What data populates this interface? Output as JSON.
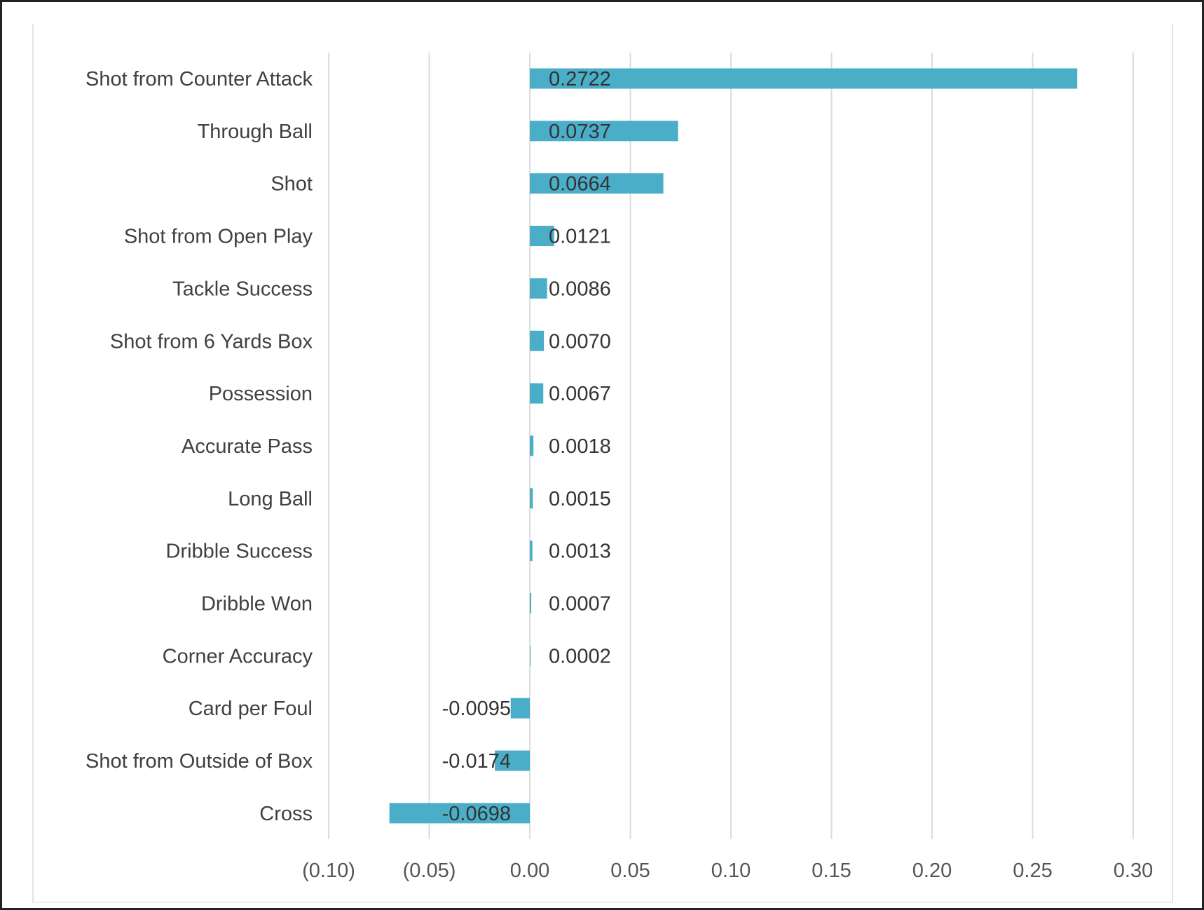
{
  "chart_data": {
    "type": "bar",
    "orientation": "horizontal",
    "title": "",
    "xlabel": "",
    "ylabel": "",
    "xlim": [
      -0.1,
      0.3
    ],
    "grid": true,
    "categories": [
      "Shot from Counter Attack",
      "Through Ball",
      "Shot",
      "Shot from Open Play",
      "Tackle Success",
      "Shot from 6 Yards Box",
      "Possession",
      "Accurate Pass",
      "Long Ball",
      "Dribble Success",
      "Dribble Won",
      "Corner Accuracy",
      "Card per Foul",
      "Shot from Outside of Box",
      "Cross"
    ],
    "values": [
      0.2722,
      0.0737,
      0.0664,
      0.0121,
      0.0086,
      0.007,
      0.0067,
      0.0018,
      0.0015,
      0.0013,
      0.0007,
      0.0002,
      -0.0095,
      -0.0174,
      -0.0698
    ],
    "data_labels": [
      "0.2722",
      "0.0737",
      "0.0664",
      "0.0121",
      "0.0086",
      "0.0070",
      "0.0067",
      "0.0018",
      "0.0015",
      "0.0013",
      "0.0007",
      "0.0002",
      "-0.0095",
      "-0.0174",
      "-0.0698"
    ],
    "ticks": [
      -0.1,
      -0.05,
      0.0,
      0.05,
      0.1,
      0.15,
      0.2,
      0.25,
      0.3
    ],
    "tick_labels": [
      "(0.10)",
      "(0.05)",
      "0.00",
      "0.05",
      "0.10",
      "0.15",
      "0.20",
      "0.25",
      "0.30"
    ],
    "bar_color": "#4aaec8",
    "negative_tick_color": "#e8101a",
    "tick_color": "#555555"
  }
}
